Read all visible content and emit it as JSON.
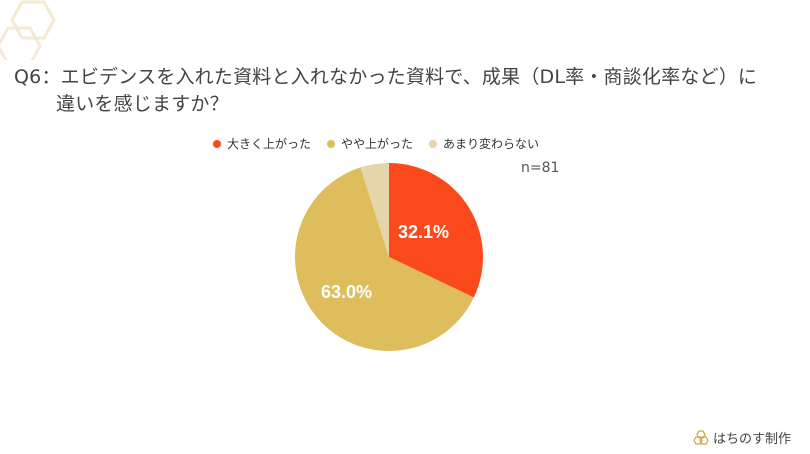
{
  "title": {
    "prefix": "Q6：",
    "line1": "エビデンスを入れた資料と入れなかった資料で、成果（DL率・商談化率など）に",
    "line2": "違いを感じますか？"
  },
  "legend": [
    {
      "label": "大きく上がった",
      "color": "#FA4A1B"
    },
    {
      "label": "やや上がった",
      "color": "#DDBD5C"
    },
    {
      "label": "あまり変わらない",
      "color": "#E5D5A8"
    }
  ],
  "sample_size": "n=81",
  "slice_labels": {
    "s0": "32.1%",
    "s1": "63.0%"
  },
  "brand": {
    "name": "はちのす制作",
    "icon": "honeycomb-logo-icon"
  },
  "chart_data": {
    "type": "pie",
    "title": "Q6：エビデンスを入れた資料と入れなかった資料で、成果（DL率・商談化率など）に違いを感じますか？",
    "categories": [
      "大きく上がった",
      "やや上がった",
      "あまり変わらない"
    ],
    "values": [
      32.1,
      63.0,
      4.9
    ],
    "colors": [
      "#FA4A1B",
      "#DDBD5C",
      "#E5D5A8"
    ],
    "data_labels": [
      "32.1%",
      "63.0%",
      ""
    ],
    "annotations": [
      "n=81"
    ],
    "legend_position": "top",
    "start_angle": "12 o'clock, clockwise"
  }
}
